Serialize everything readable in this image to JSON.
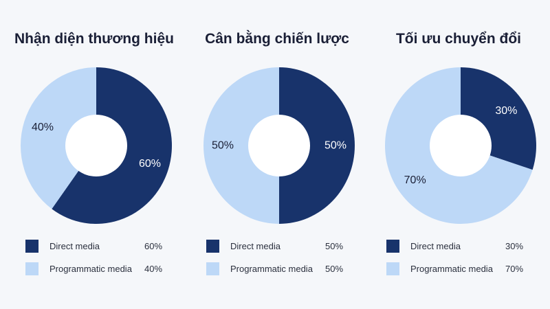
{
  "colors": {
    "direct": "#18336b",
    "programmatic": "#bdd8f7",
    "background": "#f5f7fa"
  },
  "chart_data": [
    {
      "type": "pie",
      "title": "Nhận diện thương hiệu",
      "categories": [
        "Direct media",
        "Programmatic media"
      ],
      "values": [
        60,
        40
      ],
      "labels": [
        "60%",
        "40%"
      ],
      "legend": [
        {
          "label": "Direct media",
          "value": "60%"
        },
        {
          "label": "Programmatic media",
          "value": "40%"
        }
      ]
    },
    {
      "type": "pie",
      "title": "Cân bằng chiến lược",
      "categories": [
        "Direct media",
        "Programmatic media"
      ],
      "values": [
        50,
        50
      ],
      "labels": [
        "50%",
        "50%"
      ],
      "legend": [
        {
          "label": "Direct media",
          "value": "50%"
        },
        {
          "label": "Programmatic media",
          "value": "50%"
        }
      ]
    },
    {
      "type": "pie",
      "title": "Tối ưu chuyển đổi",
      "categories": [
        "Direct media",
        "Programmatic media"
      ],
      "values": [
        30,
        70
      ],
      "labels": [
        "30%",
        "70%"
      ],
      "legend": [
        {
          "label": "Direct media",
          "value": "30%"
        },
        {
          "label": "Programmatic media",
          "value": "70%"
        }
      ]
    }
  ]
}
